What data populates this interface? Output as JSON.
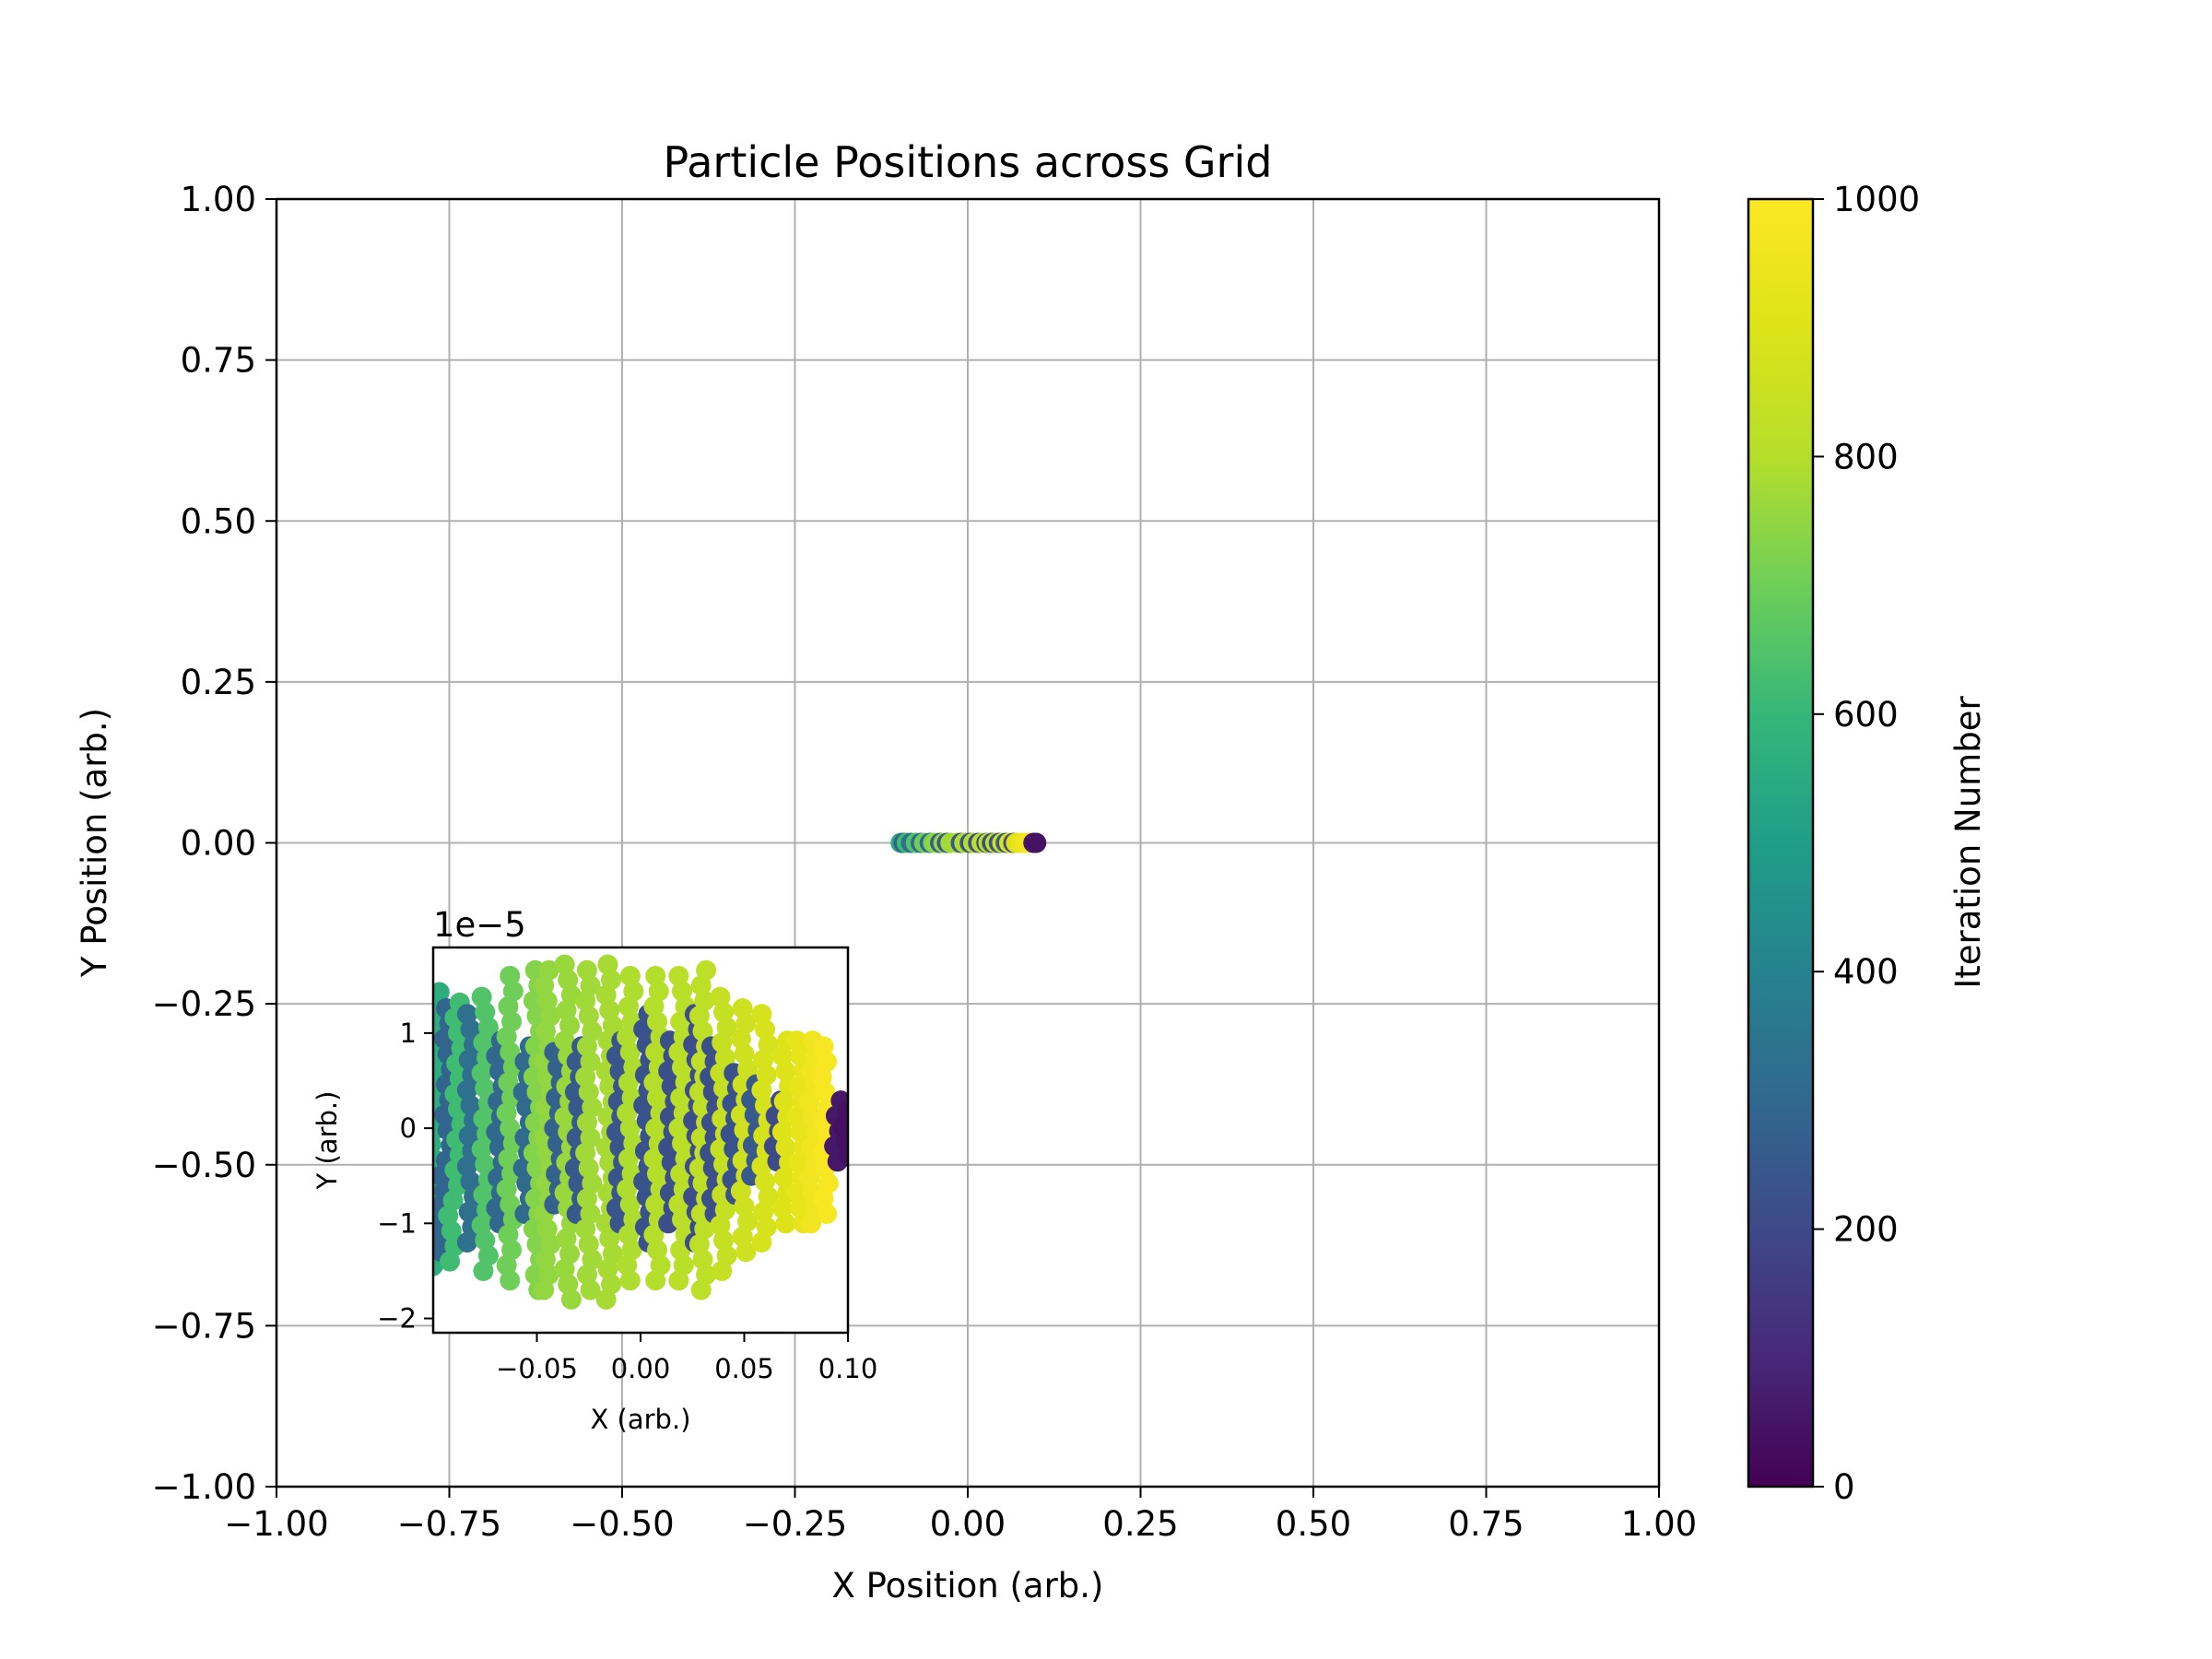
{
  "chart_data": [
    {
      "type": "scatter",
      "title": "Particle Positions across Grid",
      "xlabel": "X Position (arb.)",
      "ylabel": "Y Position (arb.)",
      "xlim": [
        -1.0,
        1.0
      ],
      "ylim": [
        -1.0,
        1.0
      ],
      "grid": true,
      "xticks": [
        "−1.00",
        "−0.75",
        "−0.50",
        "−0.25",
        "0.00",
        "0.25",
        "0.50",
        "0.75",
        "1.00"
      ],
      "yticks": [
        "−1.00",
        "−0.75",
        "−0.50",
        "−0.25",
        "0.00",
        "0.25",
        "0.50",
        "0.75",
        "1.00"
      ],
      "colormap": "viridis",
      "points_summary": "particles spread along y≈0 from x≈-0.1 to x≈0.1, colored by iteration",
      "x_range": [
        -0.1,
        0.1
      ],
      "y_value": 0.0,
      "colorbar": {
        "label": "Iteration Number",
        "range": [
          0,
          1000
        ],
        "ticks": [
          "0",
          "200",
          "400",
          "600",
          "800",
          "1000"
        ]
      }
    },
    {
      "type": "scatter",
      "title": "",
      "xlabel": "X (arb.)",
      "ylabel": "Y (arb.)",
      "y_offset_label": "1e−5",
      "xlim": [
        -0.1,
        0.1
      ],
      "ylim": [
        -2.15,
        1.9
      ],
      "xticks": [
        "−0.05",
        "0.00",
        "0.05",
        "0.10"
      ],
      "yticks": [
        "−2",
        "−1",
        "0",
        "1"
      ],
      "bands": [
        {
          "x": -0.097,
          "amp": 1.45,
          "iter": 560
        },
        {
          "x": -0.093,
          "amp": 1.3,
          "iter": 290
        },
        {
          "x": -0.088,
          "amp": 1.4,
          "iter": 620
        },
        {
          "x": -0.082,
          "amp": 1.2,
          "iter": 330
        },
        {
          "x": -0.075,
          "amp": 1.5,
          "iter": 650
        },
        {
          "x": -0.068,
          "amp": 1.0,
          "iter": 300
        },
        {
          "x": -0.063,
          "amp": 1.6,
          "iter": 700
        },
        {
          "x": -0.055,
          "amp": 0.9,
          "iter": 310
        },
        {
          "x": -0.05,
          "amp": 1.7,
          "iter": 730
        },
        {
          "x": -0.045,
          "amp": 1.7,
          "iter": 750
        },
        {
          "x": -0.04,
          "amp": 0.8,
          "iter": 280
        },
        {
          "x": -0.035,
          "amp": 1.8,
          "iter": 760
        },
        {
          "x": -0.03,
          "amp": 0.9,
          "iter": 250
        },
        {
          "x": -0.025,
          "amp": 1.7,
          "iter": 770
        },
        {
          "x": -0.015,
          "amp": 1.8,
          "iter": 780
        },
        {
          "x": -0.01,
          "amp": 1.0,
          "iter": 240
        },
        {
          "x": -0.005,
          "amp": 1.6,
          "iter": 790
        },
        {
          "x": 0.003,
          "amp": 1.2,
          "iter": 230
        },
        {
          "x": 0.008,
          "amp": 1.6,
          "iter": 800
        },
        {
          "x": 0.015,
          "amp": 1.0,
          "iter": 220
        },
        {
          "x": 0.02,
          "amp": 1.6,
          "iter": 810
        },
        {
          "x": 0.027,
          "amp": 1.2,
          "iter": 210
        },
        {
          "x": 0.03,
          "amp": 1.7,
          "iter": 820
        },
        {
          "x": 0.035,
          "amp": 0.9,
          "iter": 220
        },
        {
          "x": 0.04,
          "amp": 1.5,
          "iter": 840
        },
        {
          "x": 0.045,
          "amp": 0.7,
          "iter": 230
        },
        {
          "x": 0.05,
          "amp": 1.3,
          "iter": 860
        },
        {
          "x": 0.055,
          "amp": 0.5,
          "iter": 250
        },
        {
          "x": 0.06,
          "amp": 1.2,
          "iter": 880
        },
        {
          "x": 0.066,
          "amp": 0.35,
          "iter": 200
        },
        {
          "x": 0.07,
          "amp": 1.0,
          "iter": 900
        },
        {
          "x": 0.077,
          "amp": 1.0,
          "iter": 930
        },
        {
          "x": 0.083,
          "amp": 1.0,
          "iter": 960
        },
        {
          "x": 0.089,
          "amp": 0.9,
          "iter": 980
        },
        {
          "x": 0.095,
          "amp": 0.35,
          "iter": 60
        },
        {
          "x": 0.099,
          "amp": 0.3,
          "iter": 40
        }
      ]
    }
  ]
}
